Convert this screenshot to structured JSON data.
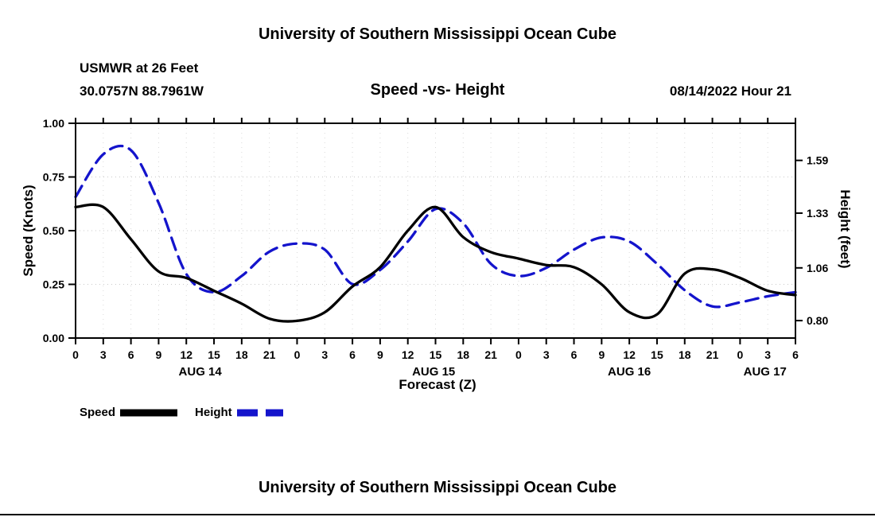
{
  "header": {
    "title": "University of Southern Mississippi Ocean Cube",
    "station": "USMWR at 26 Feet",
    "coordinates": "30.0757N  88.7961W",
    "datetime": "08/14/2022 Hour 21"
  },
  "legend": {
    "speed_label": "Speed",
    "height_label": "Height"
  },
  "footer": {
    "title": "University of Southern Mississippi Ocean Cube"
  },
  "chart_data": {
    "type": "line",
    "title": "Speed -vs- Height",
    "xlabel": "Forecast (Z)",
    "ylabel_left": "Speed (Knots)",
    "ylabel_right": "Height (feet)",
    "grid": true,
    "x_hours": [
      0,
      3,
      6,
      9,
      12,
      15,
      18,
      21,
      24,
      27,
      30,
      33,
      36,
      39,
      42,
      45,
      48,
      51,
      54,
      57,
      60,
      63,
      66,
      69,
      72,
      75,
      78
    ],
    "x_tick_labels": [
      "0",
      "3",
      "6",
      "9",
      "12",
      "15",
      "18",
      "21",
      "0",
      "3",
      "6",
      "9",
      "12",
      "15",
      "18",
      "21",
      "0",
      "3",
      "6",
      "9",
      "12",
      "15",
      "18",
      "21",
      "0",
      "3",
      "6"
    ],
    "day_labels": [
      {
        "label": "AUG 14",
        "hour": 13.5
      },
      {
        "label": "AUG 15",
        "hour": 38.8
      },
      {
        "label": "AUG 16",
        "hour": 60
      },
      {
        "label": "AUG 17",
        "hour": 74.7
      }
    ],
    "ylim_left": [
      0,
      1
    ],
    "yticks_left": [
      0,
      0.25,
      0.5,
      0.75,
      1
    ],
    "ylim_right": [
      0.714,
      1.773
    ],
    "yticks_right": [
      0.8,
      1.06,
      1.33,
      1.59
    ],
    "series": [
      {
        "name": "Speed",
        "axis": "left",
        "units": "Knots",
        "color": "#000000",
        "style": "solid",
        "values": [
          0.61,
          0.61,
          0.46,
          0.31,
          0.28,
          0.22,
          0.16,
          0.09,
          0.08,
          0.12,
          0.24,
          0.33,
          0.5,
          0.61,
          0.47,
          0.4,
          0.37,
          0.34,
          0.33,
          0.25,
          0.12,
          0.11,
          0.3,
          0.32,
          0.28,
          0.22,
          0.2
        ]
      },
      {
        "name": "Height",
        "axis": "right",
        "units": "feet",
        "color": "#1414cc",
        "style": "dashed",
        "values": [
          1.41,
          1.62,
          1.64,
          1.38,
          1.03,
          0.94,
          1.02,
          1.14,
          1.18,
          1.15,
          0.98,
          1.05,
          1.19,
          1.35,
          1.28,
          1.08,
          1.02,
          1.06,
          1.15,
          1.21,
          1.19,
          1.08,
          0.95,
          0.87,
          0.89,
          0.92,
          0.94
        ]
      }
    ]
  }
}
